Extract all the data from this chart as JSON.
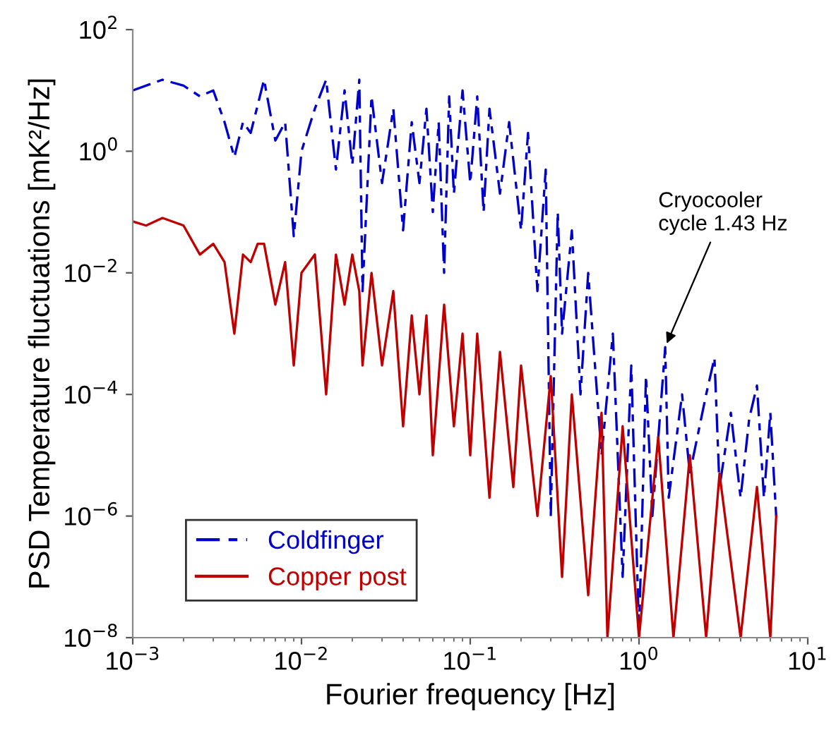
{
  "chart_data": {
    "type": "line",
    "xlabel": "Fourier frequency [Hz]",
    "ylabel": "PSD Temperature fluctuations [mK²/Hz]",
    "log": "xy",
    "grid": false,
    "legend": "bottom left",
    "xlim": [
      0.001,
      10
    ],
    "ylim": [
      1e-08,
      100
    ],
    "xticks": [
      {
        "value": 0.001,
        "label": "10$^{−3}$"
      },
      {
        "value": 0.01,
        "label": "10$^{−2}$"
      },
      {
        "value": 0.1,
        "label": "10$^{−1}$"
      },
      {
        "value": 1,
        "label": "10$^{0}$"
      },
      {
        "value": 10,
        "label": "10$^{1}$"
      }
    ],
    "yticks": [
      {
        "value": 1e-08,
        "label": "10$^{−8}$"
      },
      {
        "value": 1e-06,
        "label": "10$^{−6}$"
      },
      {
        "value": 0.0001,
        "label": "10$^{−4}$"
      },
      {
        "value": 0.01,
        "label": "10$^{−2}$"
      },
      {
        "value": 1,
        "label": "10$^{0}$"
      },
      {
        "value": 100,
        "label": "10$^{2}$"
      }
    ],
    "annotations": [
      {
        "text": "Cryocooler\ncycle 1.43 Hz",
        "x": 1.43,
        "y": 0.0006
      }
    ],
    "series": [
      {
        "name": "Coldfinger",
        "color": "#0000cc",
        "line_style": "dashed",
        "x": [
          0.001,
          0.0015,
          0.002,
          0.0025,
          0.003,
          0.0035,
          0.004,
          0.0045,
          0.005,
          0.006,
          0.007,
          0.008,
          0.009,
          0.01,
          0.012,
          0.014,
          0.016,
          0.018,
          0.02,
          0.022,
          0.023,
          0.026,
          0.03,
          0.035,
          0.04,
          0.045,
          0.05,
          0.055,
          0.06,
          0.065,
          0.07,
          0.075,
          0.08,
          0.09,
          0.1,
          0.11,
          0.12,
          0.13,
          0.15,
          0.17,
          0.2,
          0.22,
          0.25,
          0.28,
          0.3,
          0.33,
          0.35,
          0.4,
          0.45,
          0.5,
          0.6,
          0.7,
          0.8,
          0.9,
          1.0,
          1.1,
          1.2,
          1.43,
          1.5,
          1.8,
          2,
          2.5,
          2.8,
          3,
          3.5,
          4,
          4.5,
          5,
          5.5,
          6,
          6.5
        ],
        "values": [
          10,
          15,
          12,
          8,
          10,
          3,
          0.8,
          3,
          2,
          15,
          1.5,
          3,
          0.04,
          1,
          5,
          15,
          0.5,
          10,
          0.6,
          15,
          0.005,
          8,
          0.3,
          5,
          0.05,
          3,
          0.3,
          5,
          0.1,
          3,
          0.01,
          8,
          0.2,
          10,
          0.3,
          8,
          0.1,
          5,
          0.2,
          3,
          0.05,
          2,
          0.005,
          0.5,
          1e-06,
          0.1,
          0.001,
          0.05,
          0.0001,
          0.01,
          1e-05,
          0.001,
          1e-07,
          0.0003,
          1.2e-08,
          0.0002,
          1e-06,
          0.0006,
          2e-06,
          0.0001,
          5e-06,
          0.0001,
          0.0004,
          3e-06,
          5e-05,
          2e-06,
          4e-05,
          0.00014,
          2e-06,
          5e-05,
          1e-06
        ]
      },
      {
        "name": "Copper post",
        "color": "#c00000",
        "line_style": "solid",
        "x": [
          0.001,
          0.0012,
          0.0015,
          0.002,
          0.0025,
          0.003,
          0.0035,
          0.004,
          0.0045,
          0.005,
          0.0055,
          0.006,
          0.007,
          0.008,
          0.009,
          0.01,
          0.012,
          0.014,
          0.016,
          0.018,
          0.02,
          0.022,
          0.023,
          0.026,
          0.03,
          0.035,
          0.04,
          0.045,
          0.05,
          0.055,
          0.06,
          0.07,
          0.08,
          0.09,
          0.1,
          0.11,
          0.13,
          0.15,
          0.18,
          0.2,
          0.25,
          0.3,
          0.35,
          0.4,
          0.5,
          0.6,
          0.65,
          0.8,
          1.0,
          1.3,
          1.6,
          2,
          2.5,
          3,
          4,
          5,
          6,
          6.5
        ],
        "values": [
          0.07,
          0.06,
          0.08,
          0.06,
          0.02,
          0.03,
          0.015,
          0.001,
          0.02,
          0.015,
          0.03,
          0.03,
          0.003,
          0.015,
          0.0003,
          0.01,
          0.02,
          0.0001,
          0.02,
          0.003,
          0.02,
          0.005,
          0.0003,
          0.01,
          0.0003,
          0.005,
          3e-05,
          0.002,
          0.0001,
          0.002,
          1e-05,
          0.003,
          3e-05,
          0.001,
          1e-05,
          0.001,
          2e-06,
          0.0005,
          3e-06,
          0.0003,
          1e-06,
          0.0002,
          1e-07,
          0.0001,
          5e-08,
          5e-05,
          1e-08,
          3e-05,
          1e-08,
          2e-05,
          1e-08,
          1e-05,
          1e-08,
          5e-06,
          1e-08,
          3e-06,
          1e-08,
          1e-06
        ]
      }
    ]
  }
}
